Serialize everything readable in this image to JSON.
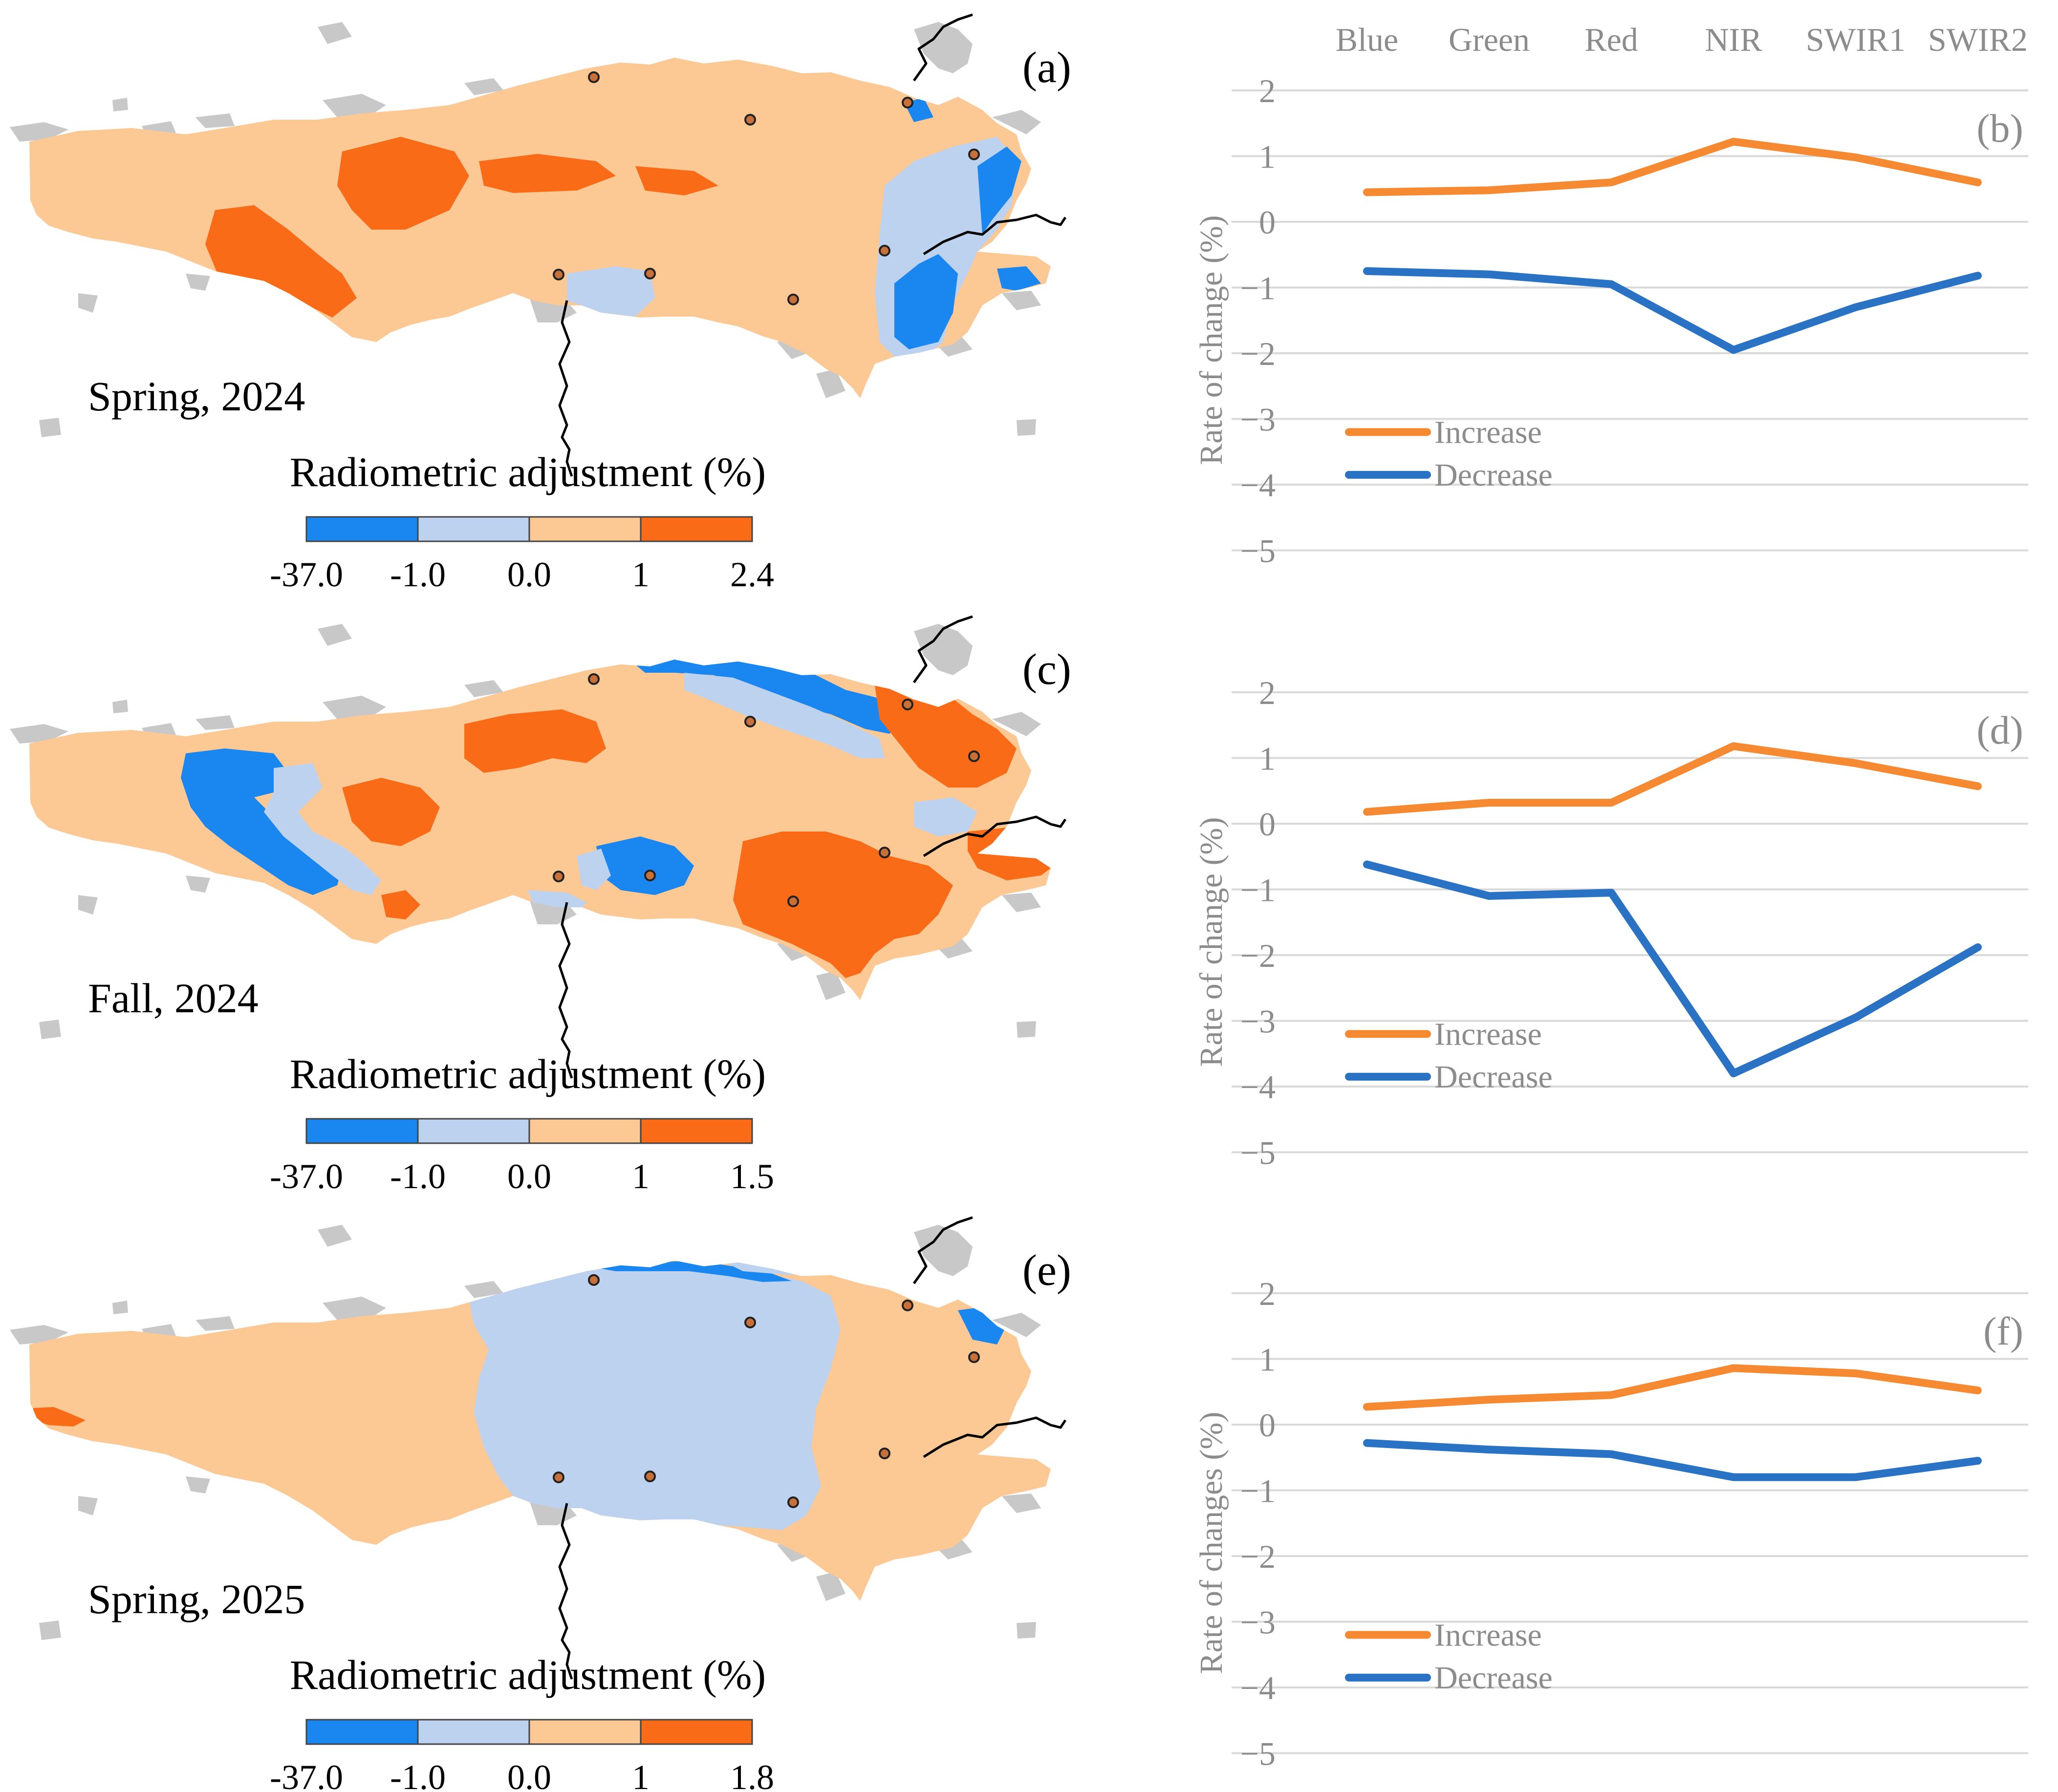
{
  "colors": {
    "strong_decrease": "#1a87f0",
    "slight_decrease": "#bcd2ee",
    "slight_increase": "#fcc894",
    "strong_increase": "#fa6b18",
    "land_gray": "#c8c8c8",
    "increase_line": "#f58a33",
    "decrease_line": "#2a72c4",
    "gridline": "#d9d9d9",
    "axis_text": "#8c8c8c",
    "river": "#000000"
  },
  "maps": [
    {
      "panel_label": "(a)",
      "season": "Spring, 2024",
      "legend_title": "Radiometric adjustment (%)",
      "legend_ticks": [
        "-37.0",
        "-1.0",
        "0.0",
        "1",
        "2.4"
      ],
      "pattern": "spring2024"
    },
    {
      "panel_label": "(c)",
      "season": "Fall, 2024",
      "legend_title": "Radiometric adjustment (%)",
      "legend_ticks": [
        "-37.0",
        "-1.0",
        "0.0",
        "1",
        "1.5"
      ],
      "pattern": "fall2024"
    },
    {
      "panel_label": "(e)",
      "season": "Spring, 2025",
      "legend_title": "Radiometric adjustment (%)",
      "legend_ticks": [
        "-37.0",
        "-1.0",
        "0.0",
        "1",
        "1.8"
      ],
      "pattern": "spring2025"
    }
  ],
  "chart_data": [
    {
      "type": "line",
      "panel_label": "(b)",
      "categories": [
        "Blue",
        "Green",
        "Red",
        "NIR",
        "SWIR1",
        "SWIR2"
      ],
      "ylabel": "Rate of change (%)",
      "ylim": [
        -5,
        2
      ],
      "yticks": [
        "2",
        "1",
        "0",
        "−1",
        "−2",
        "−3",
        "−4",
        "−5"
      ],
      "show_category_labels": true,
      "series": [
        {
          "name": "Increase",
          "values": [
            0.45,
            0.48,
            0.6,
            1.22,
            0.98,
            0.6
          ]
        },
        {
          "name": "Decrease",
          "values": [
            -0.75,
            -0.8,
            -0.95,
            -1.95,
            -1.3,
            -0.82
          ]
        }
      ]
    },
    {
      "type": "line",
      "panel_label": "(d)",
      "categories": [
        "Blue",
        "Green",
        "Red",
        "NIR",
        "SWIR1",
        "SWIR2"
      ],
      "ylabel": "Rate of change (%)",
      "ylim": [
        -5,
        2
      ],
      "yticks": [
        "2",
        "1",
        "0",
        "−1",
        "−2",
        "−3",
        "−4",
        "−5"
      ],
      "show_category_labels": false,
      "series": [
        {
          "name": "Increase",
          "values": [
            0.18,
            0.32,
            0.32,
            1.18,
            0.92,
            0.57
          ]
        },
        {
          "name": "Decrease",
          "values": [
            -0.62,
            -1.1,
            -1.05,
            -3.8,
            -2.95,
            -1.88
          ]
        }
      ]
    },
    {
      "type": "line",
      "panel_label": "(f)",
      "categories": [
        "Blue",
        "Green",
        "Red",
        "NIR",
        "SWIR1",
        "SWIR2"
      ],
      "ylabel": "Rate of changes (%)",
      "ylim": [
        -5,
        2
      ],
      "yticks": [
        "2",
        "1",
        "0",
        "−1",
        "−2",
        "−3",
        "−4",
        "−5"
      ],
      "show_category_labels": false,
      "series": [
        {
          "name": "Increase",
          "values": [
            0.27,
            0.38,
            0.45,
            0.86,
            0.78,
            0.52
          ]
        },
        {
          "name": "Decrease",
          "values": [
            -0.28,
            -0.38,
            -0.45,
            -0.8,
            -0.8,
            -0.55
          ]
        }
      ]
    }
  ]
}
